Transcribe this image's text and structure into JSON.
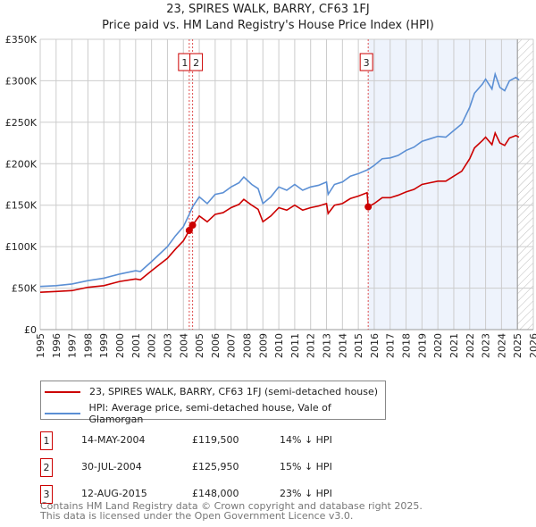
{
  "chart_data": {
    "type": "line",
    "title": "23, SPIRES WALK, BARRY, CF63 1FJ",
    "subtitle": "Price paid vs. HM Land Registry's House Price Index (HPI)",
    "xlim": [
      1995,
      2026
    ],
    "ylim": [
      0,
      350000
    ],
    "x_ticks": [
      "1995",
      "1996",
      "1997",
      "1998",
      "1999",
      "2000",
      "2001",
      "2002",
      "2003",
      "2004",
      "2005",
      "2006",
      "2007",
      "2008",
      "2009",
      "2010",
      "2011",
      "2012",
      "2013",
      "2014",
      "2015",
      "2016",
      "2017",
      "2018",
      "2019",
      "2020",
      "2021",
      "2022",
      "2023",
      "2024",
      "2025",
      "2026"
    ],
    "y_ticks": [
      {
        "v": 0,
        "l": "£0"
      },
      {
        "v": 50000,
        "l": "£50K"
      },
      {
        "v": 100000,
        "l": "£100K"
      },
      {
        "v": 150000,
        "l": "£150K"
      },
      {
        "v": 200000,
        "l": "£200K"
      },
      {
        "v": 250000,
        "l": "£250K"
      },
      {
        "v": 300000,
        "l": "£300K"
      },
      {
        "v": 350000,
        "l": "£350K"
      }
    ],
    "grid": true,
    "colors": {
      "property": "#cc0000",
      "hpi": "#5b8fd4",
      "shade": "#eef3fc"
    },
    "shaded_range": [
      2015.62,
      2025.0
    ],
    "hatched_from": 2025.0,
    "series": [
      {
        "name": "HPI",
        "points": [
          [
            1995,
            52
          ],
          [
            1996,
            53
          ],
          [
            1997,
            55
          ],
          [
            1998,
            59
          ],
          [
            1999,
            62
          ],
          [
            2000,
            67
          ],
          [
            2001,
            71
          ],
          [
            2001.3,
            70
          ],
          [
            2002,
            82
          ],
          [
            2003,
            100
          ],
          [
            2003.5,
            113
          ],
          [
            2004,
            124
          ],
          [
            2004.37,
            139
          ],
          [
            2004.58,
            148
          ],
          [
            2005,
            160
          ],
          [
            2005.5,
            152
          ],
          [
            2006,
            163
          ],
          [
            2006.5,
            165
          ],
          [
            2007,
            172
          ],
          [
            2007.5,
            177
          ],
          [
            2007.8,
            184
          ],
          [
            2008.3,
            175
          ],
          [
            2008.7,
            170
          ],
          [
            2009,
            152
          ],
          [
            2009.5,
            160
          ],
          [
            2010,
            172
          ],
          [
            2010.5,
            168
          ],
          [
            2011,
            175
          ],
          [
            2011.5,
            168
          ],
          [
            2012,
            172
          ],
          [
            2012.5,
            174
          ],
          [
            2013,
            178
          ],
          [
            2013.1,
            163
          ],
          [
            2013.5,
            175
          ],
          [
            2014,
            178
          ],
          [
            2014.5,
            185
          ],
          [
            2015,
            188
          ],
          [
            2015.62,
            193
          ],
          [
            2016,
            198
          ],
          [
            2016.5,
            206
          ],
          [
            2017,
            207
          ],
          [
            2017.5,
            210
          ],
          [
            2018,
            216
          ],
          [
            2018.5,
            220
          ],
          [
            2019,
            227
          ],
          [
            2019.5,
            230
          ],
          [
            2020,
            233
          ],
          [
            2020.5,
            232
          ],
          [
            2021,
            240
          ],
          [
            2021.5,
            248
          ],
          [
            2022,
            268
          ],
          [
            2022.3,
            285
          ],
          [
            2022.8,
            296
          ],
          [
            2023,
            302
          ],
          [
            2023.4,
            290
          ],
          [
            2023.6,
            308
          ],
          [
            2023.9,
            292
          ],
          [
            2024.2,
            288
          ],
          [
            2024.5,
            300
          ],
          [
            2024.9,
            304
          ],
          [
            2025.1,
            301
          ]
        ]
      },
      {
        "name": "Property",
        "points": [
          [
            1995,
            45
          ],
          [
            1996,
            46
          ],
          [
            1997,
            47
          ],
          [
            1998,
            51
          ],
          [
            1999,
            53
          ],
          [
            2000,
            58
          ],
          [
            2001,
            61
          ],
          [
            2001.3,
            60
          ],
          [
            2002,
            71
          ],
          [
            2003,
            86
          ],
          [
            2003.5,
            97
          ],
          [
            2004,
            107
          ],
          [
            2004.37,
            119.5
          ],
          [
            2004.58,
            125.95
          ],
          [
            2005,
            137
          ],
          [
            2005.5,
            130
          ],
          [
            2006,
            139
          ],
          [
            2006.5,
            141
          ],
          [
            2007,
            147
          ],
          [
            2007.5,
            151
          ],
          [
            2007.8,
            157
          ],
          [
            2008.3,
            150
          ],
          [
            2008.7,
            145
          ],
          [
            2009,
            130
          ],
          [
            2009.5,
            137
          ],
          [
            2010,
            147
          ],
          [
            2010.5,
            144
          ],
          [
            2011,
            150
          ],
          [
            2011.5,
            144
          ],
          [
            2012,
            147
          ],
          [
            2012.5,
            149
          ],
          [
            2013,
            152
          ],
          [
            2013.1,
            140
          ],
          [
            2013.5,
            150
          ],
          [
            2014,
            152
          ],
          [
            2014.5,
            158
          ],
          [
            2015,
            161
          ],
          [
            2015.55,
            165
          ],
          [
            2015.62,
            148
          ],
          [
            2016,
            152
          ],
          [
            2016.5,
            159
          ],
          [
            2017,
            159
          ],
          [
            2017.5,
            162
          ],
          [
            2018,
            166
          ],
          [
            2018.5,
            169
          ],
          [
            2019,
            175
          ],
          [
            2019.5,
            177
          ],
          [
            2020,
            179
          ],
          [
            2020.5,
            179
          ],
          [
            2021,
            185
          ],
          [
            2021.5,
            191
          ],
          [
            2022,
            206
          ],
          [
            2022.3,
            219
          ],
          [
            2022.8,
            228
          ],
          [
            2023,
            232
          ],
          [
            2023.4,
            223
          ],
          [
            2023.6,
            237
          ],
          [
            2023.9,
            225
          ],
          [
            2024.2,
            222
          ],
          [
            2024.5,
            231
          ],
          [
            2024.9,
            234
          ],
          [
            2025.1,
            232
          ]
        ]
      }
    ],
    "sales": [
      {
        "id": "1",
        "x": 2004.37,
        "y": 119.5
      },
      {
        "id": "2",
        "x": 2004.58,
        "y": 125.95
      },
      {
        "id": "3",
        "x": 2015.62,
        "y": 148
      }
    ]
  },
  "legend": {
    "property": "23, SPIRES WALK, BARRY, CF63 1FJ (semi-detached house)",
    "hpi": "HPI: Average price, semi-detached house, Vale of Glamorgan"
  },
  "transactions": [
    {
      "id": "1",
      "date": "14-MAY-2004",
      "price": "£119,500",
      "delta": "14% ↓ HPI"
    },
    {
      "id": "2",
      "date": "30-JUL-2004",
      "price": "£125,950",
      "delta": "15% ↓ HPI"
    },
    {
      "id": "3",
      "date": "12-AUG-2015",
      "price": "£148,000",
      "delta": "23% ↓ HPI"
    }
  ],
  "footer": {
    "line1": "Contains HM Land Registry data © Crown copyright and database right 2025.",
    "line2": "This data is licensed under the Open Government Licence v3.0."
  }
}
